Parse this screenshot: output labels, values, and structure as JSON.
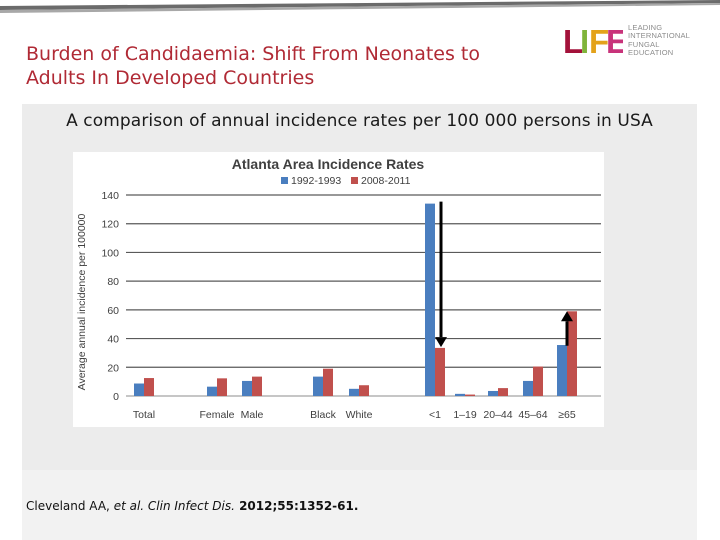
{
  "slide": {
    "title_line1": "Burden of Candidaemia: Shift From Neonates to",
    "title_line2": "Adults In Developed Countries",
    "subtitle": "A comparison of annual incidence rates per 100 000 persons in USA",
    "citation": {
      "authors": "Cleveland AA, ",
      "etal": "et al.",
      "journal": " Clin Infect Dis.",
      "volume": " 2012;55:1352-61."
    }
  },
  "logo": {
    "mark": "LIFE",
    "lines": [
      "LEADING",
      "INTERNATIONAL",
      "FUNGAL",
      "EDUCATION"
    ]
  },
  "colors": {
    "title": "#b02a35",
    "series_1992": "#4a7ebf",
    "series_2008": "#c0504d",
    "arrow": "#000000"
  },
  "chart_data": {
    "type": "bar",
    "title": "Atlanta Area Incidence Rates",
    "xlabel": "",
    "ylabel": "Average annual incidence per 100000",
    "ylim": [
      0,
      140
    ],
    "yticks": [
      0,
      20,
      40,
      60,
      80,
      100,
      120,
      140
    ],
    "grid": true,
    "legend_position": "top",
    "categories": [
      "Total",
      "Female",
      "Male",
      "Black",
      "White",
      "<1",
      "1–19",
      "20–44",
      "45–64",
      "≥65"
    ],
    "groups": [
      [
        "Total"
      ],
      [
        "Female",
        "Male"
      ],
      [
        "Black",
        "White"
      ],
      [
        "<1",
        "1–19",
        "20–44",
        "45–64",
        "≥65"
      ]
    ],
    "series": [
      {
        "name": "1992-1993",
        "values": [
          8.7,
          6.5,
          10.5,
          13.5,
          5,
          134,
          1.5,
          3.5,
          10.5,
          35.5
        ]
      },
      {
        "name": "2008-2011",
        "values": [
          12.5,
          12.3,
          13.5,
          19,
          7.5,
          33.5,
          1,
          5.5,
          20.5,
          59
        ]
      }
    ],
    "arrows": [
      {
        "category": "<1",
        "direction": "down",
        "from": 134,
        "to": 34
      },
      {
        "category": "≥65",
        "direction": "up",
        "from": 35,
        "to": 59
      }
    ]
  }
}
